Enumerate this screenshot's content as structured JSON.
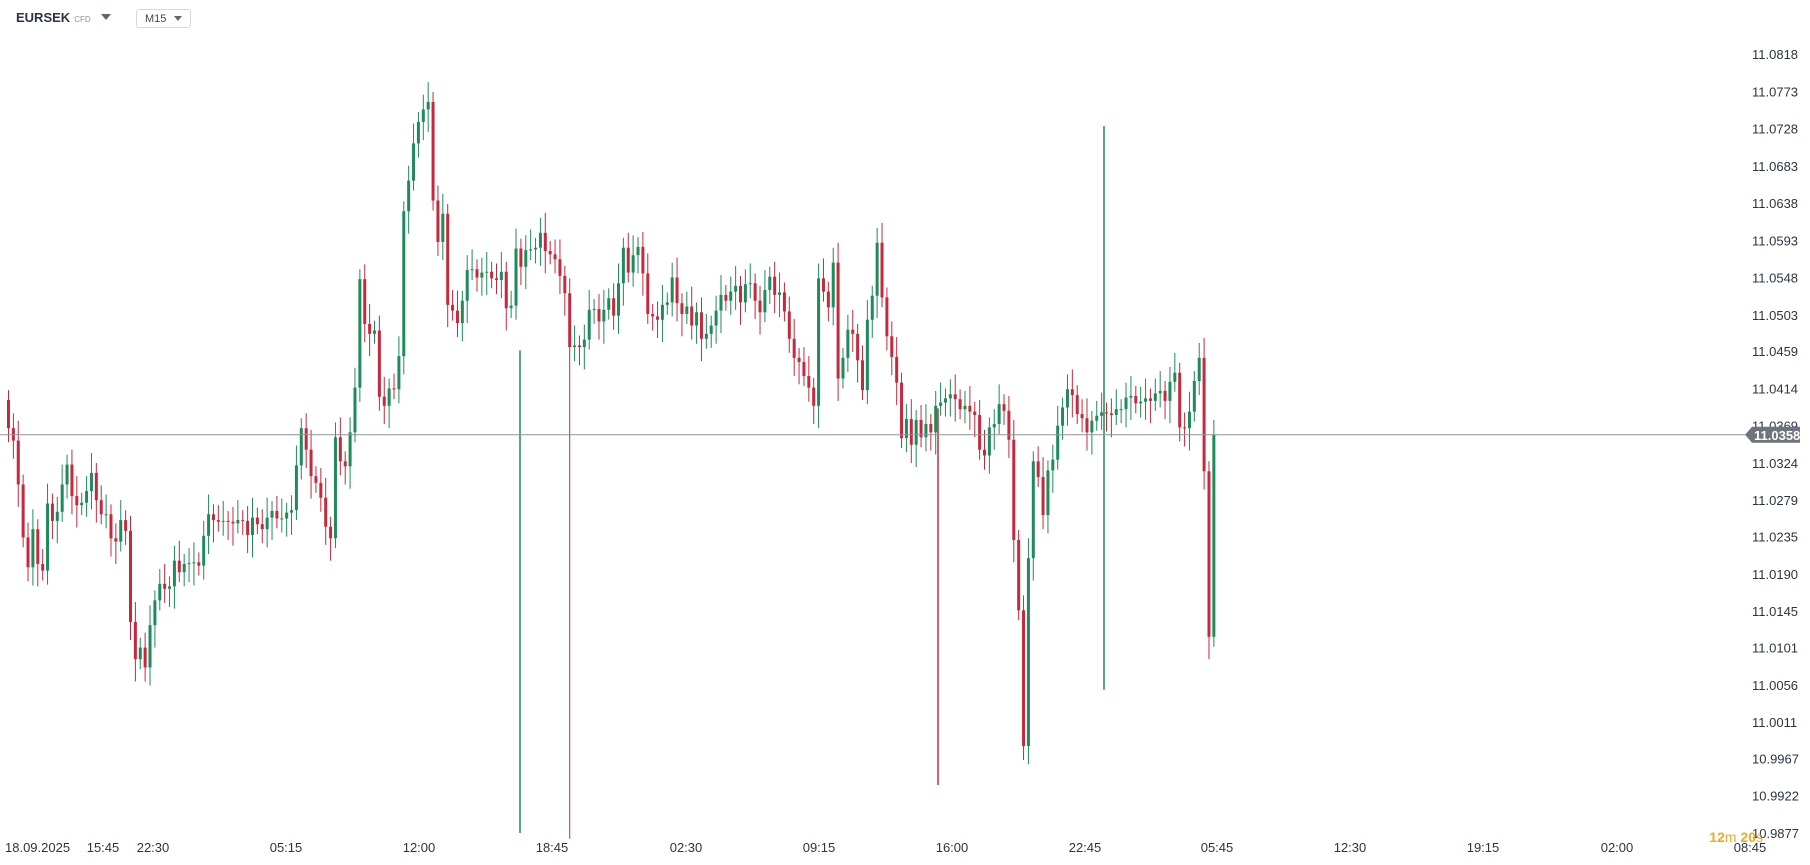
{
  "toolbar": {
    "symbol": "EURSEK",
    "symbol_type": "CFD",
    "timeframe": "M15"
  },
  "timer": {
    "minutes": "12",
    "minutes_unit": "m",
    "seconds": "20",
    "seconds_unit": "s"
  },
  "colors": {
    "up": "#1f8b5a",
    "down": "#c7293c",
    "price_line": "#8d9299",
    "price_tag_bg": "#6e747c",
    "axis_text": "#2b3445"
  },
  "chart_data": {
    "type": "candlestick",
    "symbol": "EURSEK",
    "timeframe": "M15",
    "current_price": "11.0358",
    "y_ticks": [
      "11.0818",
      "11.0773",
      "11.0728",
      "11.0683",
      "11.0638",
      "11.0593",
      "11.0548",
      "11.0503",
      "11.0459",
      "11.0414",
      "11.0369",
      "11.0324",
      "11.0279",
      "11.0235",
      "11.0190",
      "11.0145",
      "11.0101",
      "11.0056",
      "11.0011",
      "10.9967",
      "10.9922",
      "10.9877"
    ],
    "x_ticks": [
      "18.09.2025",
      "15:45",
      "22:30",
      "05:15",
      "12:00",
      "18:45",
      "02:30",
      "09:15",
      "16:00",
      "22:45",
      "05:45",
      "12:30",
      "19:15",
      "02:00",
      "08:45"
    ],
    "ylim": [
      10.9877,
      11.0818
    ],
    "close": [
      11.0366,
      11.0351,
      11.0298,
      11.0234,
      11.0198,
      11.0244,
      11.0202,
      11.0194,
      11.0275,
      11.0254,
      11.0265,
      11.0298,
      11.0322,
      11.0284,
      11.0273,
      11.0276,
      11.029,
      11.0312,
      11.0279,
      11.0262,
      11.0262,
      11.0233,
      11.0229,
      11.0255,
      11.0242,
      11.0132,
      11.0087,
      11.0101,
      11.0077,
      11.0128,
      11.0158,
      11.0178,
      11.0172,
      11.0175,
      11.0206,
      11.0192,
      11.0202,
      11.0203,
      11.0204,
      11.02,
      11.0236,
      11.0262,
      11.0255,
      11.0253,
      11.0254,
      11.0253,
      11.0251,
      11.0255,
      11.0254,
      11.0237,
      11.0258,
      11.025,
      11.0244,
      11.0258,
      11.0266,
      11.0257,
      11.0257,
      11.0264,
      11.0267,
      11.0321,
      11.0366,
      11.034,
      11.0308,
      11.03,
      11.0282,
      11.0247,
      11.0233,
      11.0355,
      11.0326,
      11.032,
      11.0361,
      11.0415,
      11.0546,
      11.0492,
      11.048,
      11.0484,
      11.0404,
      11.0393,
      11.0414,
      11.0413,
      11.0453,
      11.0628,
      11.0665,
      11.071,
      11.0736,
      11.0751,
      11.076,
      11.0641,
      11.0591,
      11.0625,
      11.0515,
      11.0508,
      11.0493,
      11.052,
      11.0557,
      11.0558,
      11.0548,
      11.0554,
      11.0555,
      11.0547,
      11.0545,
      11.0555,
      11.0511,
      11.0514,
      11.0583,
      11.0561,
      11.0581,
      11.0582,
      11.0584,
      11.0602,
      11.058,
      11.0576,
      11.057,
      11.055,
      11.0529,
      11.0464,
      11.0466,
      11.0464,
      11.0473,
      11.0509,
      11.051,
      11.0495,
      11.0509,
      11.0523,
      11.0502,
      11.0541,
      11.0584,
      11.0554,
      11.0575,
      11.0585,
      11.0553,
      11.0504,
      11.0501,
      11.0497,
      11.0515,
      11.0518,
      11.0548,
      11.0517,
      11.0504,
      11.0513,
      11.049,
      11.0506,
      11.0474,
      11.048,
      11.049,
      11.0508,
      11.0527,
      11.052,
      11.0531,
      11.0538,
      11.0518,
      11.054,
      11.0541,
      11.052,
      11.0506,
      11.0533,
      11.0549,
      11.0527,
      11.053,
      11.0507,
      11.0474,
      11.0451,
      11.0446,
      11.0429,
      11.0415,
      11.0393,
      11.0547,
      11.0531,
      11.0512,
      11.0566,
      11.0426,
      11.0451,
      11.0485,
      11.048,
      11.0448,
      11.0412,
      11.0497,
      11.0526,
      11.059,
      11.0524,
      11.0477,
      11.0452,
      11.0421,
      11.0354,
      11.0377,
      11.0346,
      11.0376,
      11.0355,
      11.0371,
      11.0361,
      11.0393,
      11.0397,
      11.0402,
      11.0407,
      11.0401,
      11.0389,
      11.0393,
      11.0386,
      11.0382,
      11.034,
      11.0333,
      11.0367,
      11.0371,
      11.0395,
      11.0387,
      11.0352,
      11.0231,
      11.0146,
      10.9982,
      11.0209,
      11.0326,
      11.0307,
      11.0261,
      11.0315,
      11.0328,
      11.0369,
      11.0391,
      11.0413,
      11.0406,
      11.0383,
      11.0378,
      11.0361,
      11.0375,
      11.0381,
      11.0385,
      11.0384,
      11.0382,
      11.0389,
      11.0389,
      11.0403,
      11.0405,
      11.0396,
      11.0398,
      11.0402,
      11.0399,
      11.0408,
      11.0411,
      11.0399,
      11.0422,
      11.0433,
      11.0367,
      11.0366,
      11.0386,
      11.0423,
      11.0451,
      11.0314,
      11.0114,
      11.0358
    ]
  }
}
